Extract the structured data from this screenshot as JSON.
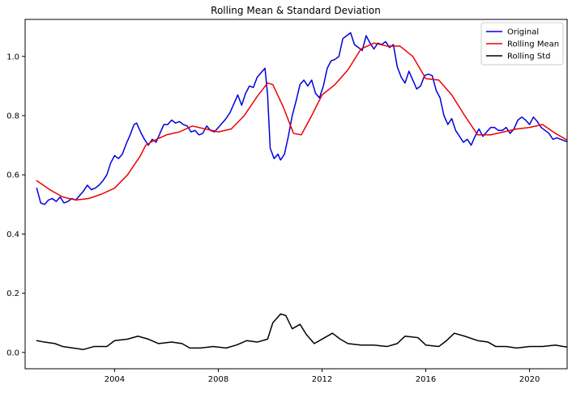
{
  "chart_data": {
    "type": "line",
    "title": "Rolling Mean & Standard Deviation",
    "xlabel": "",
    "ylabel": "",
    "xlim": [
      2000.55,
      2021.45
    ],
    "ylim": [
      -0.055,
      1.125
    ],
    "x_ticks": [
      2004,
      2008,
      2012,
      2016,
      2020
    ],
    "y_ticks": [
      0.0,
      0.2,
      0.4,
      0.6,
      0.8,
      1.0
    ],
    "grid": false,
    "legend": {
      "placement": "top-right",
      "entries": [
        "Original",
        "Rolling Mean",
        "Rolling Std"
      ]
    },
    "series": [
      {
        "name": "Original",
        "color": "#0000dd",
        "points": [
          [
            2001.0,
            0.555
          ],
          [
            2001.15,
            0.505
          ],
          [
            2001.3,
            0.5
          ],
          [
            2001.45,
            0.515
          ],
          [
            2001.6,
            0.52
          ],
          [
            2001.75,
            0.51
          ],
          [
            2001.9,
            0.525
          ],
          [
            2002.05,
            0.505
          ],
          [
            2002.2,
            0.51
          ],
          [
            2002.35,
            0.52
          ],
          [
            2002.5,
            0.515
          ],
          [
            2002.65,
            0.53
          ],
          [
            2002.8,
            0.545
          ],
          [
            2002.95,
            0.565
          ],
          [
            2003.1,
            0.55
          ],
          [
            2003.25,
            0.555
          ],
          [
            2003.4,
            0.565
          ],
          [
            2003.55,
            0.58
          ],
          [
            2003.7,
            0.6
          ],
          [
            2003.85,
            0.64
          ],
          [
            2004.0,
            0.665
          ],
          [
            2004.15,
            0.655
          ],
          [
            2004.3,
            0.67
          ],
          [
            2004.45,
            0.705
          ],
          [
            2004.6,
            0.735
          ],
          [
            2004.75,
            0.77
          ],
          [
            2004.85,
            0.775
          ],
          [
            2005.0,
            0.745
          ],
          [
            2005.15,
            0.72
          ],
          [
            2005.3,
            0.7
          ],
          [
            2005.45,
            0.72
          ],
          [
            2005.6,
            0.71
          ],
          [
            2005.75,
            0.74
          ],
          [
            2005.9,
            0.77
          ],
          [
            2006.05,
            0.77
          ],
          [
            2006.2,
            0.785
          ],
          [
            2006.35,
            0.775
          ],
          [
            2006.5,
            0.78
          ],
          [
            2006.65,
            0.77
          ],
          [
            2006.8,
            0.765
          ],
          [
            2006.95,
            0.745
          ],
          [
            2007.1,
            0.75
          ],
          [
            2007.25,
            0.735
          ],
          [
            2007.4,
            0.74
          ],
          [
            2007.55,
            0.765
          ],
          [
            2007.7,
            0.75
          ],
          [
            2007.85,
            0.745
          ],
          [
            2008.0,
            0.76
          ],
          [
            2008.15,
            0.775
          ],
          [
            2008.3,
            0.79
          ],
          [
            2008.45,
            0.81
          ],
          [
            2008.6,
            0.84
          ],
          [
            2008.75,
            0.87
          ],
          [
            2008.9,
            0.835
          ],
          [
            2009.05,
            0.875
          ],
          [
            2009.2,
            0.9
          ],
          [
            2009.35,
            0.895
          ],
          [
            2009.5,
            0.93
          ],
          [
            2009.65,
            0.945
          ],
          [
            2009.8,
            0.96
          ],
          [
            2009.9,
            0.87
          ],
          [
            2010.0,
            0.69
          ],
          [
            2010.15,
            0.655
          ],
          [
            2010.3,
            0.67
          ],
          [
            2010.4,
            0.65
          ],
          [
            2010.55,
            0.67
          ],
          [
            2010.7,
            0.73
          ],
          [
            2010.85,
            0.8
          ],
          [
            2011.0,
            0.85
          ],
          [
            2011.15,
            0.905
          ],
          [
            2011.3,
            0.92
          ],
          [
            2011.45,
            0.9
          ],
          [
            2011.6,
            0.92
          ],
          [
            2011.75,
            0.875
          ],
          [
            2011.9,
            0.86
          ],
          [
            2012.05,
            0.9
          ],
          [
            2012.2,
            0.96
          ],
          [
            2012.35,
            0.985
          ],
          [
            2012.5,
            0.99
          ],
          [
            2012.65,
            1.0
          ],
          [
            2012.8,
            1.06
          ],
          [
            2012.95,
            1.07
          ],
          [
            2013.1,
            1.08
          ],
          [
            2013.25,
            1.04
          ],
          [
            2013.4,
            1.03
          ],
          [
            2013.55,
            1.02
          ],
          [
            2013.7,
            1.07
          ],
          [
            2013.85,
            1.045
          ],
          [
            2014.0,
            1.025
          ],
          [
            2014.15,
            1.045
          ],
          [
            2014.3,
            1.04
          ],
          [
            2014.45,
            1.05
          ],
          [
            2014.6,
            1.03
          ],
          [
            2014.75,
            1.04
          ],
          [
            2014.9,
            0.965
          ],
          [
            2015.05,
            0.93
          ],
          [
            2015.2,
            0.91
          ],
          [
            2015.35,
            0.95
          ],
          [
            2015.5,
            0.92
          ],
          [
            2015.65,
            0.89
          ],
          [
            2015.8,
            0.9
          ],
          [
            2015.95,
            0.935
          ],
          [
            2016.1,
            0.94
          ],
          [
            2016.25,
            0.935
          ],
          [
            2016.4,
            0.885
          ],
          [
            2016.55,
            0.86
          ],
          [
            2016.7,
            0.8
          ],
          [
            2016.85,
            0.77
          ],
          [
            2017.0,
            0.79
          ],
          [
            2017.15,
            0.75
          ],
          [
            2017.3,
            0.73
          ],
          [
            2017.45,
            0.71
          ],
          [
            2017.6,
            0.72
          ],
          [
            2017.75,
            0.7
          ],
          [
            2017.9,
            0.73
          ],
          [
            2018.05,
            0.755
          ],
          [
            2018.2,
            0.73
          ],
          [
            2018.35,
            0.745
          ],
          [
            2018.5,
            0.76
          ],
          [
            2018.65,
            0.76
          ],
          [
            2018.8,
            0.75
          ],
          [
            2018.95,
            0.75
          ],
          [
            2019.1,
            0.76
          ],
          [
            2019.25,
            0.74
          ],
          [
            2019.4,
            0.755
          ],
          [
            2019.55,
            0.785
          ],
          [
            2019.7,
            0.795
          ],
          [
            2019.85,
            0.785
          ],
          [
            2020.0,
            0.77
          ],
          [
            2020.15,
            0.795
          ],
          [
            2020.3,
            0.78
          ],
          [
            2020.45,
            0.76
          ],
          [
            2020.6,
            0.75
          ],
          [
            2020.75,
            0.74
          ],
          [
            2020.9,
            0.72
          ],
          [
            2021.05,
            0.725
          ],
          [
            2021.2,
            0.72
          ],
          [
            2021.35,
            0.715
          ],
          [
            2021.5,
            0.71
          ],
          [
            2021.65,
            0.7
          ],
          [
            2021.8,
            0.695
          ],
          [
            2021.95,
            0.685
          ],
          [
            2022.1,
            0.68
          ],
          [
            2022.25,
            0.675
          ],
          [
            2022.4,
            0.68
          ],
          [
            2022.55,
            0.68
          ],
          [
            2022.7,
            0.65
          ],
          [
            2022.8,
            0.625
          ],
          [
            2022.9,
            0.635
          ],
          [
            2023.0,
            0.655
          ]
        ]
      },
      {
        "name": "Rolling Mean",
        "color": "#ee0000",
        "points": [
          [
            2001.0,
            0.58
          ],
          [
            2001.5,
            0.55
          ],
          [
            2002.0,
            0.525
          ],
          [
            2002.5,
            0.515
          ],
          [
            2003.0,
            0.52
          ],
          [
            2003.5,
            0.535
          ],
          [
            2004.0,
            0.555
          ],
          [
            2004.5,
            0.6
          ],
          [
            2005.0,
            0.665
          ],
          [
            2005.2,
            0.7
          ],
          [
            2005.5,
            0.715
          ],
          [
            2006.0,
            0.735
          ],
          [
            2006.5,
            0.745
          ],
          [
            2007.0,
            0.765
          ],
          [
            2007.5,
            0.755
          ],
          [
            2008.0,
            0.745
          ],
          [
            2008.5,
            0.755
          ],
          [
            2009.0,
            0.8
          ],
          [
            2009.5,
            0.865
          ],
          [
            2009.9,
            0.91
          ],
          [
            2010.1,
            0.905
          ],
          [
            2010.5,
            0.83
          ],
          [
            2010.9,
            0.74
          ],
          [
            2011.2,
            0.735
          ],
          [
            2011.6,
            0.8
          ],
          [
            2012.0,
            0.87
          ],
          [
            2012.5,
            0.905
          ],
          [
            2013.0,
            0.955
          ],
          [
            2013.5,
            1.025
          ],
          [
            2014.0,
            1.045
          ],
          [
            2014.5,
            1.035
          ],
          [
            2015.0,
            1.035
          ],
          [
            2015.5,
            1.0
          ],
          [
            2016.0,
            0.925
          ],
          [
            2016.5,
            0.92
          ],
          [
            2017.0,
            0.87
          ],
          [
            2017.5,
            0.8
          ],
          [
            2018.0,
            0.735
          ],
          [
            2018.5,
            0.735
          ],
          [
            2019.0,
            0.745
          ],
          [
            2019.5,
            0.755
          ],
          [
            2020.0,
            0.76
          ],
          [
            2020.5,
            0.77
          ],
          [
            2021.0,
            0.74
          ],
          [
            2021.5,
            0.715
          ],
          [
            2022.0,
            0.7
          ],
          [
            2022.5,
            0.69
          ],
          [
            2023.0,
            0.67
          ]
        ]
      },
      {
        "name": "Rolling Std",
        "color": "#000000",
        "points": [
          [
            2001.0,
            0.04
          ],
          [
            2001.3,
            0.035
          ],
          [
            2001.7,
            0.03
          ],
          [
            2002.0,
            0.02
          ],
          [
            2002.4,
            0.015
          ],
          [
            2002.8,
            0.01
          ],
          [
            2003.2,
            0.02
          ],
          [
            2003.7,
            0.02
          ],
          [
            2004.0,
            0.04
          ],
          [
            2004.5,
            0.045
          ],
          [
            2004.9,
            0.055
          ],
          [
            2005.3,
            0.045
          ],
          [
            2005.7,
            0.03
          ],
          [
            2006.2,
            0.035
          ],
          [
            2006.6,
            0.03
          ],
          [
            2006.9,
            0.015
          ],
          [
            2007.3,
            0.015
          ],
          [
            2007.8,
            0.02
          ],
          [
            2008.3,
            0.015
          ],
          [
            2008.7,
            0.025
          ],
          [
            2009.1,
            0.04
          ],
          [
            2009.5,
            0.035
          ],
          [
            2009.9,
            0.045
          ],
          [
            2010.1,
            0.1
          ],
          [
            2010.4,
            0.13
          ],
          [
            2010.6,
            0.125
          ],
          [
            2010.85,
            0.08
          ],
          [
            2011.15,
            0.095
          ],
          [
            2011.4,
            0.06
          ],
          [
            2011.7,
            0.03
          ],
          [
            2012.1,
            0.05
          ],
          [
            2012.4,
            0.065
          ],
          [
            2012.7,
            0.045
          ],
          [
            2013.0,
            0.03
          ],
          [
            2013.5,
            0.025
          ],
          [
            2014.0,
            0.025
          ],
          [
            2014.5,
            0.02
          ],
          [
            2014.9,
            0.03
          ],
          [
            2015.2,
            0.055
          ],
          [
            2015.7,
            0.05
          ],
          [
            2016.0,
            0.025
          ],
          [
            2016.5,
            0.02
          ],
          [
            2016.8,
            0.04
          ],
          [
            2017.1,
            0.065
          ],
          [
            2017.5,
            0.055
          ],
          [
            2018.0,
            0.04
          ],
          [
            2018.4,
            0.035
          ],
          [
            2018.7,
            0.02
          ],
          [
            2019.1,
            0.02
          ],
          [
            2019.5,
            0.015
          ],
          [
            2020.0,
            0.02
          ],
          [
            2020.5,
            0.02
          ],
          [
            2021.0,
            0.025
          ],
          [
            2021.3,
            0.02
          ],
          [
            2021.8,
            0.015
          ],
          [
            2022.3,
            0.015
          ],
          [
            2022.6,
            0.015
          ],
          [
            2022.8,
            0.025
          ],
          [
            2023.0,
            0.03
          ]
        ]
      }
    ]
  }
}
